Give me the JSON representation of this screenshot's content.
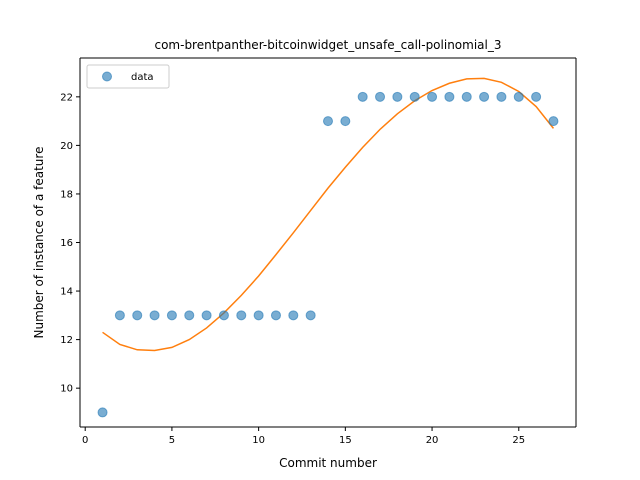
{
  "chart_data": {
    "type": "scatter",
    "title": "com-brentpanther-bitcoinwidget_unsafe_call-polinomial_3",
    "xlabel": "Commit number",
    "ylabel": "Number of instance of a feature",
    "xlim": [
      -0.3,
      28.3
    ],
    "ylim": [
      8.4,
      23.6
    ],
    "xticks": [
      0,
      5,
      10,
      15,
      20,
      25
    ],
    "yticks": [
      10,
      12,
      14,
      16,
      18,
      20,
      22
    ],
    "grid": false,
    "legend_position": "top-left",
    "series": [
      {
        "name": "data",
        "kind": "scatter",
        "color": "#1f77b4",
        "x": [
          1,
          2,
          3,
          4,
          5,
          6,
          7,
          8,
          9,
          10,
          11,
          12,
          13,
          14,
          15,
          16,
          17,
          18,
          19,
          20,
          21,
          22,
          23,
          24,
          25,
          26,
          27
        ],
        "y": [
          9,
          13,
          13,
          13,
          13,
          13,
          13,
          13,
          13,
          13,
          13,
          13,
          13,
          21,
          21,
          22,
          22,
          22,
          22,
          22,
          22,
          22,
          22,
          22,
          22,
          22,
          21
        ]
      },
      {
        "kind": "line",
        "color": "#ff7f0e",
        "x": [
          1,
          2,
          3,
          4,
          5,
          6,
          7,
          8,
          9,
          10,
          11,
          12,
          13,
          14,
          15,
          16,
          17,
          18,
          19,
          20,
          21,
          22,
          23,
          24,
          25,
          26,
          27
        ],
        "y": [
          12.3,
          11.8,
          11.58,
          11.55,
          11.68,
          12.0,
          12.48,
          13.1,
          13.82,
          14.62,
          15.5,
          16.4,
          17.32,
          18.24,
          19.1,
          19.92,
          20.66,
          21.3,
          21.84,
          22.26,
          22.56,
          22.74,
          22.76,
          22.6,
          22.22,
          21.6,
          20.7
        ]
      }
    ]
  }
}
